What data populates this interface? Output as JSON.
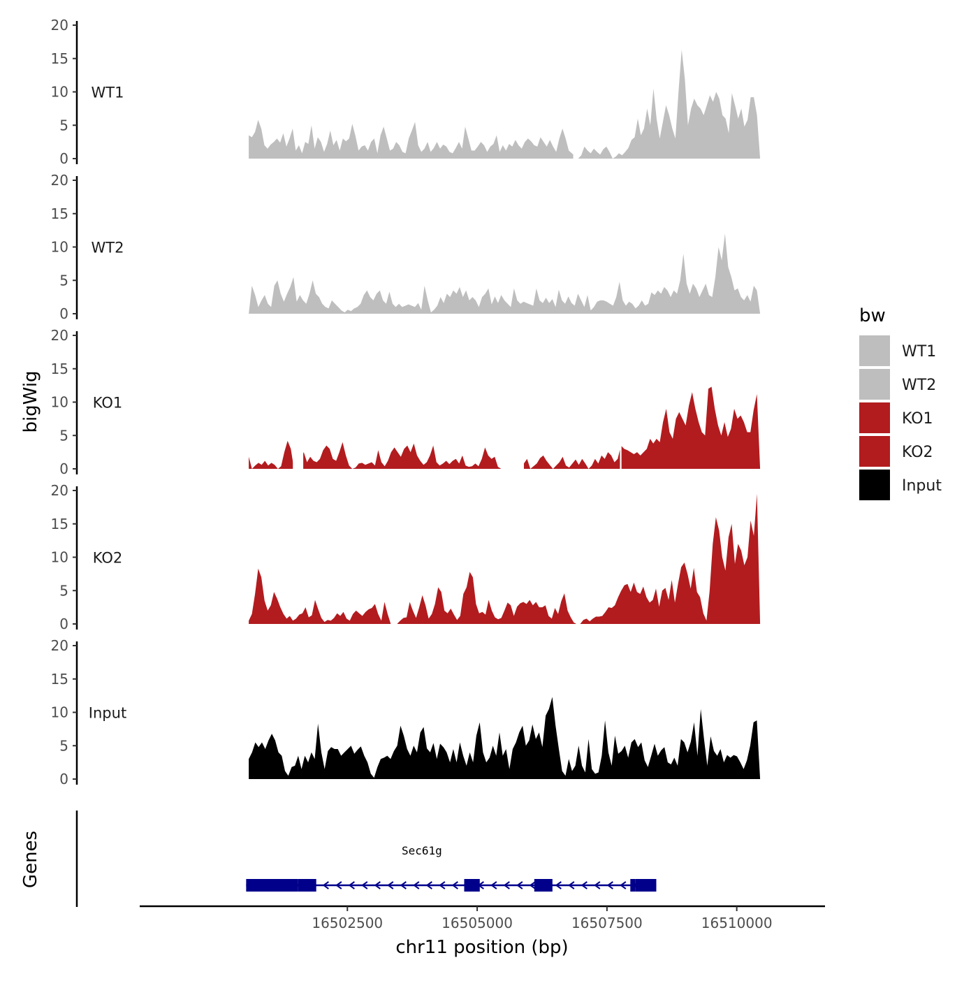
{
  "chart_data": {
    "type": "area",
    "xlabel": "chr11 position (bp)",
    "ylabel": "bigWig",
    "genes_label": "Genes",
    "xlim": [
      16498500,
      16511700
    ],
    "ylim": [
      0,
      20
    ],
    "y_ticks": [
      0,
      5,
      10,
      15,
      20
    ],
    "x_ticks": [
      16502500,
      16505000,
      16507500,
      16510000
    ],
    "x_tick_labels": [
      "16502500",
      "16505000",
      "16507500",
      "16510000"
    ],
    "legend": {
      "title": "bw",
      "position": "right",
      "entries": [
        {
          "label": "WT1",
          "color": "#bebebe"
        },
        {
          "label": "WT2",
          "color": "#bebebe"
        },
        {
          "label": "KO1",
          "color": "#b21c1f"
        },
        {
          "label": "KO2",
          "color": "#b21c1f"
        },
        {
          "label": "Input",
          "color": "#000000"
        }
      ]
    },
    "x_start": 16500600,
    "x_end": 16510450,
    "series": [
      {
        "name": "WT1",
        "color": "#bebebe",
        "values": [
          3.5,
          3.2,
          4.0,
          5.8,
          4.5,
          2.0,
          1.5,
          2.1,
          2.5,
          3.0,
          2.4,
          3.8,
          1.8,
          3.0,
          4.5,
          1.2,
          2.0,
          0.8,
          2.5,
          2.2,
          5.0,
          1.5,
          3.2,
          2.5,
          1.0,
          2.2,
          4.2,
          2.0,
          2.8,
          1.2,
          3.0,
          2.6,
          3.0,
          5.2,
          3.4,
          1.2,
          1.8,
          2.0,
          1.2,
          2.5,
          3.0,
          0.8,
          3.5,
          4.8,
          3.0,
          1.2,
          1.5,
          2.5,
          2.0,
          1.0,
          0.8,
          3.0,
          4.2,
          5.5,
          2.0,
          1.0,
          1.5,
          2.5,
          1.0,
          1.6,
          2.5,
          1.5,
          2.1,
          1.8,
          1.0,
          0.8,
          1.6,
          2.5,
          1.5,
          4.8,
          3.0,
          1.2,
          1.2,
          1.8,
          2.5,
          2.0,
          1.0,
          1.8,
          2.2,
          3.5,
          1.0,
          2.0,
          1.2,
          2.2,
          1.8,
          2.8,
          2.0,
          1.5,
          2.5,
          3.0,
          2.6,
          2.0,
          1.8,
          3.2,
          2.5,
          1.8,
          2.8,
          1.8,
          1.0,
          3.0,
          4.5,
          3.0,
          1.2,
          0.8,
          0.4,
          0,
          0.5,
          1.8,
          1.2,
          0.8,
          1.5,
          1.0,
          0.6,
          1.4,
          1.8,
          1.0,
          0,
          0.3,
          0.8,
          0.5,
          1.0,
          1.6,
          2.8,
          3.2,
          6.0,
          3.5,
          4.5,
          7.5,
          5.0,
          10.5,
          6.0,
          3.0,
          5.5,
          8.0,
          6.5,
          4.5,
          3.0,
          10.0,
          16.3,
          12.0,
          5.0,
          7.5,
          9.0,
          8.0,
          7.5,
          6.5,
          8.0,
          9.5,
          8.5,
          10.0,
          9.0,
          6.5,
          6.0,
          3.8,
          9.8,
          8.0,
          6.0,
          7.5,
          4.8,
          5.8,
          9.2,
          9.2,
          6.5,
          0
        ],
        "gaps": [
          [
            16506850,
            16506950
          ]
        ]
      },
      {
        "name": "WT2",
        "color": "#bebebe",
        "values": [
          0,
          4.2,
          2.8,
          1.0,
          2.0,
          2.8,
          1.5,
          1.0,
          4.2,
          5.0,
          3.0,
          1.8,
          3.0,
          4.0,
          5.5,
          1.8,
          2.8,
          2.0,
          1.5,
          3.0,
          5.0,
          3.0,
          2.5,
          1.5,
          1.0,
          0.8,
          2.0,
          1.5,
          1.0,
          0.5,
          0.2,
          0.6,
          0.4,
          0.8,
          1.0,
          1.5,
          2.8,
          3.5,
          2.5,
          2.0,
          3.0,
          3.5,
          2.0,
          1.5,
          3.3,
          1.5,
          1.0,
          1.5,
          1.0,
          1.2,
          1.4,
          1.2,
          1.0,
          1.6,
          0.6,
          4.2,
          2.0,
          0.2,
          0.6,
          1.2,
          2.5,
          1.6,
          3.0,
          2.5,
          3.5,
          3.0,
          4.0,
          2.5,
          3.5,
          2.0,
          2.5,
          2.0,
          1.0,
          2.5,
          3.0,
          3.8,
          1.4,
          2.6,
          1.6,
          2.8,
          2.0,
          1.5,
          1.0,
          3.8,
          2.0,
          1.5,
          1.8,
          1.6,
          1.4,
          1.2,
          3.8,
          2.0,
          1.6,
          2.4,
          1.6,
          2.2,
          1.0,
          3.6,
          2.0,
          1.5,
          2.6,
          1.6,
          1.2,
          3.0,
          2.0,
          1.0,
          2.8,
          0.5,
          1.0,
          1.8,
          2.0,
          2.0,
          1.8,
          1.5,
          1.2,
          2.5,
          4.8,
          2.0,
          1.2,
          1.8,
          1.5,
          0.8,
          1.2,
          2.0,
          1.2,
          1.5,
          3.2,
          2.8,
          3.5,
          3.0,
          4.0,
          3.5,
          2.5,
          3.5,
          3.0,
          5.0,
          9.0,
          4.5,
          3.0,
          4.5,
          3.8,
          2.5,
          3.5,
          4.5,
          2.8,
          2.5,
          5.5,
          10.0,
          8.0,
          12.0,
          7.0,
          5.5,
          3.5,
          3.8,
          2.5,
          2.0,
          2.8,
          1.8,
          4.2,
          3.5,
          0
        ],
        "gaps": []
      },
      {
        "name": "KO1",
        "color": "#b21c1f",
        "values": [
          1.8,
          0,
          0.5,
          0.9,
          0.6,
          1.2,
          0.5,
          0.9,
          0.6,
          0,
          0.4,
          2.5,
          4.2,
          3.0,
          0,
          0.5,
          1.5,
          2.5,
          1.0,
          1.8,
          1.2,
          1.0,
          1.5,
          2.8,
          3.5,
          3.0,
          1.5,
          1.2,
          2.5,
          4.0,
          2.0,
          0.5,
          0,
          0.2,
          0.8,
          0.9,
          0.6,
          0.8,
          1.0,
          0.5,
          2.8,
          1.0,
          0.4,
          1.2,
          2.5,
          3.2,
          2.5,
          1.8,
          3.0,
          3.5,
          2.5,
          3.8,
          2.0,
          1.2,
          0.6,
          1.0,
          2.0,
          3.5,
          1.0,
          0.5,
          0.8,
          1.2,
          0.7,
          1.2,
          1.5,
          0.8,
          2.0,
          0.5,
          0.3,
          0.4,
          0.8,
          0.4,
          1.5,
          3.2,
          2.0,
          1.5,
          1.8,
          0.3,
          0,
          0,
          0,
          0,
          0.8,
          0.6,
          0,
          0.8,
          1.5,
          0,
          0.4,
          0.8,
          1.6,
          2.0,
          1.2,
          0.6,
          0,
          0.5,
          1.0,
          1.8,
          0.5,
          0.2,
          0.8,
          1.4,
          0.6,
          1.5,
          0.8,
          0,
          0.5,
          1.5,
          0.8,
          2.0,
          1.5,
          2.5,
          2.0,
          1.0,
          1.5,
          3.5,
          3.0,
          2.8,
          2.5,
          2.2,
          2.5,
          2.0,
          2.5,
          3.0,
          4.5,
          3.8,
          4.5,
          4.0,
          7.0,
          9.0,
          5.5,
          4.5,
          7.5,
          8.5,
          7.5,
          6.5,
          9.5,
          11.5,
          9.0,
          7.0,
          5.5,
          5.0,
          12.0,
          12.3,
          9.0,
          6.5,
          5.0,
          7.0,
          4.8,
          6.0,
          9.0,
          7.5,
          8.0,
          7.0,
          5.5,
          5.5,
          8.8,
          11.2,
          0
        ],
        "gaps": [
          [
            16501450,
            16501650
          ],
          [
            16505550,
            16505900
          ],
          [
            16507750,
            16507780
          ]
        ]
      },
      {
        "name": "KO2",
        "color": "#b21c1f",
        "values": [
          0.5,
          1.5,
          4.5,
          8.3,
          7.0,
          3.5,
          2.0,
          2.8,
          4.8,
          3.8,
          2.5,
          1.5,
          0.8,
          1.2,
          0.5,
          0.8,
          1.4,
          1.6,
          2.5,
          1.0,
          1.3,
          3.6,
          2.2,
          0.9,
          0.3,
          0.6,
          0.5,
          0.9,
          1.6,
          1.2,
          1.8,
          0.8,
          0.5,
          1.5,
          2.0,
          1.6,
          1.2,
          1.8,
          2.2,
          2.4,
          3.0,
          1.5,
          0.5,
          3.3,
          1.5,
          0,
          0,
          0,
          0.5,
          0.9,
          1.0,
          3.3,
          2.0,
          0.9,
          2.5,
          4.3,
          2.8,
          0.8,
          1.5,
          3.0,
          5.5,
          4.8,
          2.0,
          1.6,
          2.3,
          1.4,
          0.6,
          1.2,
          4.5,
          5.5,
          7.8,
          7.0,
          3.0,
          1.6,
          1.8,
          1.4,
          3.6,
          2.0,
          1.0,
          0.7,
          0.9,
          2.0,
          3.2,
          2.8,
          1.2,
          2.6,
          3.1,
          3.3,
          3.0,
          3.6,
          2.8,
          3.3,
          2.5,
          2.5,
          2.8,
          1.2,
          0.8,
          2.4,
          1.5,
          3.4,
          4.6,
          2.0,
          1.0,
          0.2,
          0,
          0,
          0.6,
          0.8,
          0.4,
          0.8,
          1.1,
          1.1,
          1.2,
          1.8,
          2.5,
          2.4,
          2.8,
          4.0,
          5.0,
          5.8,
          6.0,
          4.8,
          6.2,
          4.8,
          4.5,
          5.6,
          4.0,
          3.2,
          3.6,
          5.3,
          2.6,
          5.0,
          5.4,
          3.6,
          6.6,
          3.2,
          6.0,
          8.5,
          9.2,
          7.5,
          5.3,
          8.4,
          4.8,
          4.0,
          1.6,
          0.5,
          4.9,
          12.0,
          16.0,
          14.0,
          10.0,
          8.0,
          13.0,
          15.0,
          9.0,
          12.0,
          11.0,
          8.8,
          10.0,
          15.5,
          13.2,
          19.5,
          0
        ],
        "gaps": [
          [
            16506900,
            16506950
          ]
        ]
      },
      {
        "name": "Input",
        "color": "#000000",
        "values": [
          3.0,
          4.0,
          5.5,
          4.8,
          5.5,
          4.5,
          5.8,
          6.8,
          5.8,
          4.0,
          3.5,
          1.2,
          0.5,
          1.8,
          2.0,
          3.5,
          1.5,
          3.5,
          2.5,
          4.0,
          3.0,
          8.3,
          4.0,
          1.5,
          4.2,
          4.8,
          4.5,
          4.5,
          3.5,
          4.0,
          4.5,
          5.0,
          3.8,
          4.4,
          4.9,
          3.5,
          2.5,
          0.8,
          0.2,
          1.8,
          3.0,
          3.2,
          3.5,
          3.0,
          4.2,
          5.0,
          8.0,
          6.5,
          4.5,
          3.5,
          5.0,
          4.0,
          7.0,
          7.8,
          4.6,
          4.0,
          5.4,
          3.0,
          5.3,
          4.8,
          4.0,
          2.5,
          4.5,
          2.5,
          5.5,
          3.5,
          2.0,
          4.0,
          2.5,
          6.5,
          8.5,
          4.0,
          2.5,
          3.2,
          5.0,
          3.5,
          7.0,
          3.5,
          4.5,
          1.5,
          4.5,
          5.5,
          7.0,
          8.0,
          5.0,
          5.8,
          8.2,
          6.0,
          7.0,
          4.8,
          9.5,
          10.5,
          12.3,
          8.0,
          4.5,
          1.2,
          0.5,
          3.0,
          1.2,
          2.0,
          5.0,
          2.0,
          1.0,
          6.0,
          1.5,
          0.8,
          1.0,
          3.5,
          8.8,
          4.0,
          2.0,
          6.5,
          3.8,
          4.2,
          5.0,
          3.2,
          5.5,
          6.0,
          4.8,
          5.5,
          2.8,
          1.8,
          3.5,
          5.3,
          3.5,
          4.3,
          4.8,
          2.5,
          2.2,
          3.2,
          2.0,
          6.0,
          5.5,
          4.0,
          5.6,
          8.5,
          3.5,
          10.5,
          6.0,
          2.0,
          6.4,
          4.2,
          3.5,
          4.5,
          2.5,
          3.6,
          3.2,
          3.6,
          3.4,
          2.5,
          1.5,
          2.8,
          5.0,
          8.5,
          8.8,
          0
        ],
        "gaps": []
      }
    ],
    "gene": {
      "name": "Sec61g",
      "strand": "-",
      "color": "#00008b",
      "start": 16500550,
      "end": 16508450,
      "exons": [
        [
          16500550,
          16501550
        ],
        [
          16501550,
          16501900
        ],
        [
          16504750,
          16505050
        ],
        [
          16506100,
          16506450
        ],
        [
          16507950,
          16508050
        ],
        [
          16508050,
          16508450
        ]
      ]
    }
  }
}
